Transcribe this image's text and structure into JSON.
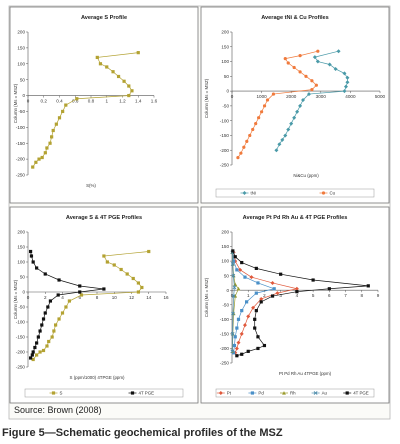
{
  "source": "Source: Brown (2008)",
  "caption": "Figure 5—Schematic geochemical profiles of the MSZ",
  "colors": {
    "S": "#b3a232",
    "Ni": "#4a9aa8",
    "Cu": "#f07a3c",
    "TPGE": "#111111",
    "Pt": "#e0593c",
    "Pd": "#4a90c8",
    "Rh": "#9a9a2a",
    "Au": "#4a8aaa"
  },
  "chart_data": [
    {
      "type": "line",
      "title": "Average S Profile",
      "xlabel": "S(%)",
      "ylabel": "Column (Ms = MSZ)",
      "xlim": [
        0,
        1.6
      ],
      "xticks": [
        0,
        0.2,
        0.4,
        0.6,
        0.8,
        1,
        1.2,
        1.4,
        1.6
      ],
      "ylim": [
        -250,
        200
      ],
      "yticks": [
        -250,
        -200,
        -150,
        -100,
        -50,
        0,
        50,
        100,
        150,
        200
      ],
      "series": [
        {
          "name": "S",
          "color": "#b3a232",
          "marker": "square",
          "x": [
            1.4,
            0.88,
            0.92,
            1.0,
            1.08,
            1.15,
            1.22,
            1.28,
            1.32,
            1.28,
            0.62,
            0.48,
            0.44,
            0.4,
            0.36,
            0.32,
            0.3,
            0.28,
            0.24,
            0.22,
            0.18,
            0.14,
            0.1,
            0.06
          ],
          "y": [
            135,
            120,
            100,
            90,
            75,
            60,
            45,
            30,
            15,
            0,
            -10,
            -30,
            -50,
            -70,
            -90,
            -110,
            -130,
            -150,
            -165,
            -180,
            -195,
            -200,
            -210,
            -225
          ]
        }
      ]
    },
    {
      "type": "line",
      "title": "Average tNi & Cu Profiles",
      "xlabel": "Ni&Cu (ppm)",
      "ylabel": "Column (Ms = MSZ)",
      "xlim": [
        0,
        5000
      ],
      "xticks": [
        0,
        1000,
        2000,
        3000,
        4000,
        5000
      ],
      "ylim": [
        -250,
        200
      ],
      "yticks": [
        -250,
        -200,
        -150,
        -100,
        -50,
        0,
        50,
        100,
        150,
        200
      ],
      "legend": "bottom",
      "series": [
        {
          "name": "tNi",
          "color": "#4a9aa8",
          "marker": "diamond",
          "x": [
            3600,
            2800,
            2900,
            3300,
            3500,
            3800,
            3900,
            3900,
            3850,
            3800,
            2600,
            2400,
            2300,
            2200,
            2100,
            2000,
            1900,
            1800,
            1700,
            1600,
            1500
          ],
          "y": [
            135,
            115,
            100,
            90,
            75,
            60,
            45,
            30,
            15,
            0,
            -10,
            -30,
            -50,
            -70,
            -90,
            -110,
            -130,
            -150,
            -165,
            -180,
            -200
          ]
        },
        {
          "name": "Cu",
          "color": "#f07a3c",
          "marker": "circle",
          "x": [
            2900,
            2300,
            1800,
            1900,
            2100,
            2300,
            2500,
            2700,
            2850,
            2700,
            1400,
            1200,
            1100,
            1000,
            900,
            800,
            700,
            600,
            500,
            400,
            300,
            200
          ],
          "y": [
            135,
            120,
            110,
            95,
            80,
            65,
            50,
            35,
            20,
            5,
            -10,
            -30,
            -50,
            -70,
            -90,
            -110,
            -130,
            -150,
            -170,
            -190,
            -210,
            -225
          ]
        }
      ]
    },
    {
      "type": "line",
      "title": "Average S & 4T PGE Profiles",
      "xlabel": "S (ppm/1000) 4TPGE (ppm)",
      "ylabel": "Column (Ms = MSZ)",
      "xlim": [
        0,
        16
      ],
      "xticks": [
        0,
        2,
        4,
        6,
        8,
        10,
        12,
        14,
        16
      ],
      "ylim": [
        -250,
        200
      ],
      "yticks": [
        -250,
        -200,
        -150,
        -100,
        -50,
        0,
        50,
        100,
        150,
        200
      ],
      "legend": "bottom",
      "series": [
        {
          "name": "S",
          "color": "#b3a232",
          "marker": "square",
          "x": [
            14,
            8.8,
            9.2,
            10,
            10.8,
            11.5,
            12.2,
            12.8,
            13.2,
            12.8,
            6.2,
            4.8,
            4.4,
            4.0,
            3.6,
            3.2,
            3.0,
            2.8,
            2.4,
            2.2,
            1.8,
            1.4,
            1.0,
            0.6
          ],
          "y": [
            135,
            120,
            100,
            90,
            75,
            60,
            45,
            30,
            15,
            0,
            -10,
            -30,
            -50,
            -70,
            -90,
            -110,
            -130,
            -150,
            -165,
            -180,
            -195,
            -200,
            -210,
            -225
          ]
        },
        {
          "name": "4T PGE",
          "color": "#111111",
          "marker": "square",
          "x": [
            0.3,
            0.4,
            0.6,
            1.0,
            2.0,
            3.6,
            6.0,
            8.8,
            6.0,
            3.5,
            2.6,
            2.3,
            2.0,
            1.8,
            1.6,
            1.4,
            1.2,
            1.0,
            0.8,
            0.6,
            0.5,
            0.3
          ],
          "y": [
            135,
            120,
            100,
            80,
            60,
            40,
            20,
            10,
            0,
            -10,
            -30,
            -50,
            -70,
            -90,
            -110,
            -130,
            -150,
            -170,
            -185,
            -200,
            -210,
            -220
          ]
        }
      ]
    },
    {
      "type": "line",
      "title": "Average Pt Pd Rh Au & 4T PGE Profiles",
      "xlabel": "Pt Pd Rh Au 4TPGE (ppm)",
      "ylabel": "Column (Ms = MSZ)",
      "xlim": [
        0,
        9
      ],
      "xticks": [
        0,
        1,
        2,
        3,
        4,
        5,
        6,
        7,
        8,
        9
      ],
      "ylim": [
        -250,
        200
      ],
      "yticks": [
        -250,
        -200,
        -150,
        -100,
        -50,
        0,
        50,
        100,
        150,
        200
      ],
      "legend": "bottom",
      "series": [
        {
          "name": "Pt",
          "color": "#e0593c",
          "marker": "diamond",
          "x": [
            0.1,
            0.2,
            0.5,
            1.2,
            2.5,
            4.0,
            2.8,
            1.8,
            1.3,
            1.0,
            0.8,
            0.6,
            0.4,
            0.3,
            0.2
          ],
          "y": [
            130,
            100,
            70,
            45,
            25,
            5,
            -10,
            -30,
            -60,
            -90,
            -120,
            -150,
            -180,
            -200,
            -215
          ]
        },
        {
          "name": "Pd",
          "color": "#4a90c8",
          "marker": "square",
          "x": [
            0.05,
            0.1,
            0.3,
            0.8,
            1.6,
            2.6,
            1.5,
            0.9,
            0.6,
            0.4,
            0.3,
            0.2,
            0.15,
            0.1
          ],
          "y": [
            130,
            100,
            70,
            45,
            25,
            5,
            -10,
            -40,
            -70,
            -100,
            -130,
            -160,
            -190,
            -215
          ]
        },
        {
          "name": "Rh",
          "color": "#9a9a2a",
          "marker": "triangle",
          "x": [
            0.02,
            0.05,
            0.1,
            0.2,
            0.4,
            0.2,
            0.1,
            0.05,
            0.03
          ],
          "y": [
            130,
            90,
            50,
            20,
            5,
            -20,
            -80,
            -150,
            -210
          ]
        },
        {
          "name": "Au",
          "color": "#4a8aaa",
          "marker": "x",
          "x": [
            0.02,
            0.04,
            0.08,
            0.15,
            0.1,
            0.06,
            0.04,
            0.02
          ],
          "y": [
            130,
            90,
            50,
            10,
            -20,
            -80,
            -150,
            -210
          ]
        },
        {
          "name": "4T PGE",
          "color": "#111111",
          "marker": "square",
          "x": [
            0.05,
            0.2,
            0.6,
            1.5,
            3.0,
            5.0,
            8.4,
            6.0,
            4.0,
            2.5,
            1.8,
            1.5,
            1.4,
            1.4,
            1.6,
            2.0,
            1.6,
            1.0,
            0.6,
            0.3
          ],
          "y": [
            135,
            115,
            95,
            75,
            55,
            35,
            15,
            5,
            -5,
            -20,
            -40,
            -70,
            -100,
            -130,
            -160,
            -190,
            -200,
            -210,
            -220,
            -225
          ]
        }
      ]
    }
  ]
}
